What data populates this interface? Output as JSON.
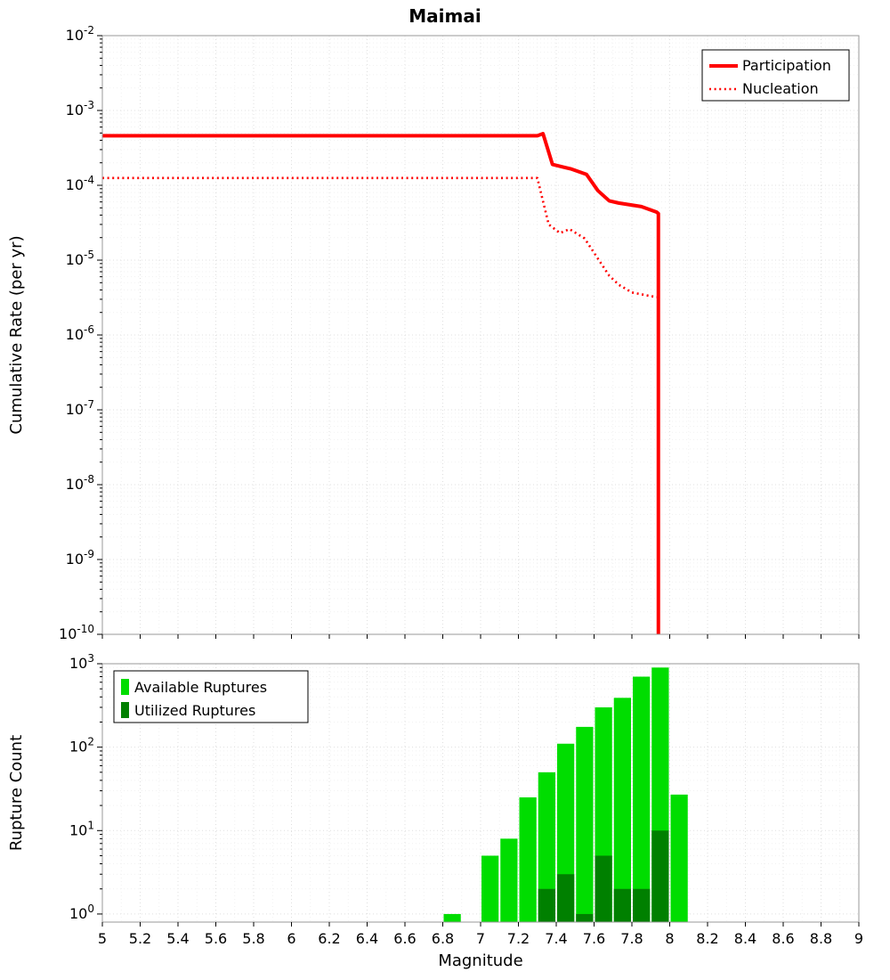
{
  "title": "Maimai",
  "chart_data": [
    {
      "type": "line",
      "title": "Maimai",
      "xlabel": "Magnitude",
      "ylabel": "Cumulative Rate (per yr)",
      "xlim": [
        5,
        9
      ],
      "ylim": [
        1e-10,
        0.01
      ],
      "y_scale": "log",
      "grid": true,
      "legend_position": "top-right",
      "y_tick_exponents": [
        -2,
        -3,
        -4,
        -5,
        -6,
        -7,
        -8,
        -9,
        -10
      ],
      "series": [
        {
          "name": "Participation",
          "color": "#ff0000",
          "line": "solid",
          "width": 4,
          "points": [
            [
              5.0,
              0.00046
            ],
            [
              7.3,
              0.00046
            ],
            [
              7.33,
              0.00049
            ],
            [
              7.38,
              0.00019
            ],
            [
              7.48,
              0.000165
            ],
            [
              7.56,
              0.00014
            ],
            [
              7.62,
              8.5e-05
            ],
            [
              7.68,
              6.2e-05
            ],
            [
              7.73,
              5.8e-05
            ],
            [
              7.85,
              5.2e-05
            ],
            [
              7.93,
              4.4e-05
            ],
            [
              7.94,
              4.2e-05
            ],
            [
              7.94,
              1e-10
            ]
          ]
        },
        {
          "name": "Nucleation",
          "color": "#ff0000",
          "line": "dotted",
          "width": 2.6,
          "points": [
            [
              5.0,
              0.000125
            ],
            [
              7.3,
              0.000125
            ],
            [
              7.36,
              3e-05
            ],
            [
              7.42,
              2.3e-05
            ],
            [
              7.47,
              2.6e-05
            ],
            [
              7.55,
              1.95e-05
            ],
            [
              7.62,
              1.05e-05
            ],
            [
              7.68,
              6.2e-06
            ],
            [
              7.73,
              4.7e-06
            ],
            [
              7.8,
              3.7e-06
            ],
            [
              7.9,
              3.3e-06
            ],
            [
              7.94,
              3.2e-06
            ],
            [
              7.94,
              1e-10
            ]
          ]
        }
      ]
    },
    {
      "type": "bar",
      "xlabel": "Magnitude",
      "ylabel": "Rupture Count",
      "xlim": [
        5,
        9
      ],
      "ylim": [
        1,
        1000
      ],
      "y_scale": "log",
      "bin_width": 0.1,
      "legend_position": "top-left",
      "y_tick_exponents": [
        0,
        1,
        2,
        3
      ],
      "series": [
        {
          "name": "Available Ruptures",
          "color": "#00dd00",
          "bins": [
            [
              6.8,
              1
            ],
            [
              7.0,
              5
            ],
            [
              7.1,
              8
            ],
            [
              7.2,
              25
            ],
            [
              7.3,
              50
            ],
            [
              7.4,
              110
            ],
            [
              7.5,
              175
            ],
            [
              7.6,
              300
            ],
            [
              7.7,
              390
            ],
            [
              7.8,
              700
            ],
            [
              7.9,
              900
            ],
            [
              8.0,
              27
            ]
          ]
        },
        {
          "name": "Utilized Ruptures",
          "color": "#008000",
          "bins": [
            [
              7.3,
              2
            ],
            [
              7.4,
              3
            ],
            [
              7.5,
              1
            ],
            [
              7.6,
              5
            ],
            [
              7.7,
              2
            ],
            [
              7.8,
              2
            ],
            [
              7.9,
              10
            ]
          ]
        }
      ]
    }
  ],
  "x_tick_labels": [
    "5",
    "5.2",
    "5.4",
    "5.6",
    "5.8",
    "6",
    "6.2",
    "6.4",
    "6.6",
    "6.8",
    "7",
    "7.2",
    "7.4",
    "7.6",
    "7.8",
    "8",
    "8.2",
    "8.4",
    "8.6",
    "8.8",
    "9"
  ],
  "legend": {
    "rate": [
      "Participation",
      "Nucleation"
    ],
    "count": [
      "Available Ruptures",
      "Utilized Ruptures"
    ]
  }
}
